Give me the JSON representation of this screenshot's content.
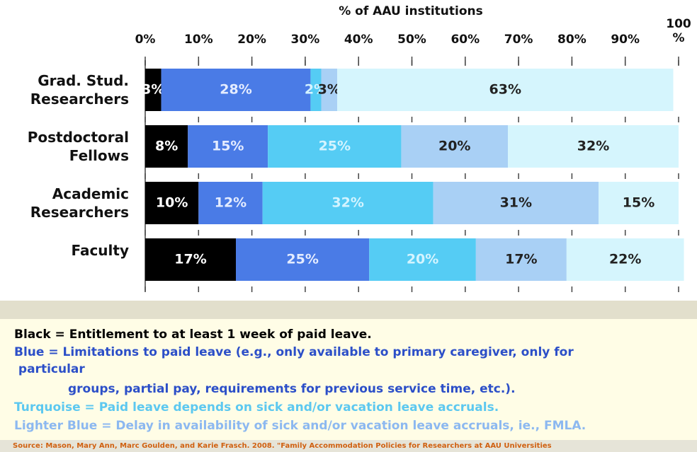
{
  "chart_data": {
    "type": "bar",
    "orientation": "horizontal",
    "stacked": true,
    "title": "% of AAU institutions",
    "categories": [
      "Grad. Stud. Researchers",
      "Postdoctoral Fellows",
      "Academic Researchers",
      "Faculty"
    ],
    "series": [
      {
        "color": "#000000",
        "values": [
          3,
          8,
          10,
          17
        ],
        "value_labels": [
          "3%",
          "8%",
          "10%",
          "17%"
        ]
      },
      {
        "color": "#4a7be6",
        "values": [
          28,
          15,
          12,
          25
        ],
        "value_labels": [
          "28%",
          "15%",
          "12%",
          "25%"
        ]
      },
      {
        "color": "#55ccf4",
        "values": [
          2,
          25,
          32,
          20
        ],
        "value_labels": [
          "2%",
          "25%",
          "32%",
          "20%"
        ]
      },
      {
        "color": "#a9d0f5",
        "values": [
          3,
          20,
          31,
          17
        ],
        "value_labels": [
          "3%",
          "20%",
          "31%",
          "17%"
        ]
      },
      {
        "color": "#d5f5fd",
        "values": [
          63,
          32,
          15,
          22
        ],
        "value_labels": [
          "63%",
          "32%",
          "15%",
          "22%"
        ]
      }
    ],
    "xlim": [
      0,
      100
    ],
    "xticks": [
      {
        "value": 0,
        "label": "0%"
      },
      {
        "value": 10,
        "label": "10%"
      },
      {
        "value": 20,
        "label": "20%"
      },
      {
        "value": 30,
        "label": "30%"
      },
      {
        "value": 40,
        "label": "40%"
      },
      {
        "value": 50,
        "label": "50%"
      },
      {
        "value": 60,
        "label": "60%"
      },
      {
        "value": 70,
        "label": "70%"
      },
      {
        "value": 80,
        "label": "80%"
      },
      {
        "value": 90,
        "label": "90%"
      },
      {
        "value": 100,
        "label": "100 %"
      }
    ],
    "notes": [
      {
        "text": "Black = Entitlement to at least 1 week of paid leave.",
        "color": "#000000"
      },
      {
        "text": "Blue = Limitations to paid leave (e.g., only available to primary caregiver, only for",
        "color": "#2c4fc8"
      },
      {
        "text": " particular",
        "color": "#2c4fc8"
      },
      {
        "text": "groups, partial pay, requirements for previous service time, etc.).",
        "color": "#2c4fc8"
      },
      {
        "text": "Turquoise = Paid leave depends on sick and/or vacation leave accruals.",
        "color": "#5cc8f0"
      },
      {
        "text": "Lighter Blue = Delay in availability of sick and/or vacation leave accruals, ie., FMLA.",
        "color": "#8cb8f0"
      }
    ],
    "source": "Source: Mason, Mary Ann, Marc Goulden, and Karie Frasch. 2008. \"Family Accommodation Policies for Researchers at AAU Universities"
  }
}
